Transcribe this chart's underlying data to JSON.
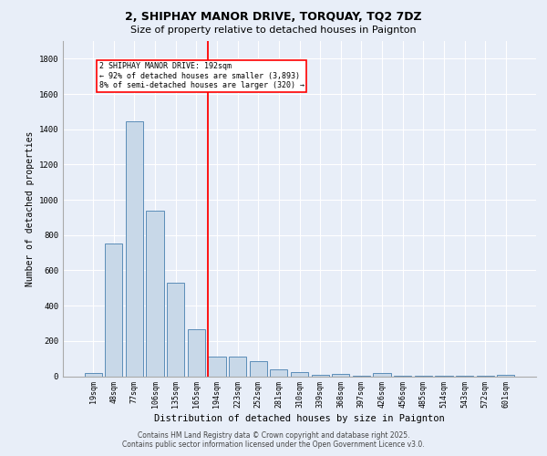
{
  "title1": "2, SHIPHAY MANOR DRIVE, TORQUAY, TQ2 7DZ",
  "title2": "Size of property relative to detached houses in Paignton",
  "xlabel": "Distribution of detached houses by size in Paignton",
  "ylabel": "Number of detached properties",
  "categories": [
    "19sqm",
    "48sqm",
    "77sqm",
    "106sqm",
    "135sqm",
    "165sqm",
    "194sqm",
    "223sqm",
    "252sqm",
    "281sqm",
    "310sqm",
    "339sqm",
    "368sqm",
    "397sqm",
    "426sqm",
    "456sqm",
    "485sqm",
    "514sqm",
    "543sqm",
    "572sqm",
    "601sqm"
  ],
  "values": [
    20,
    750,
    1443,
    940,
    530,
    265,
    110,
    110,
    85,
    40,
    25,
    10,
    15,
    5,
    20,
    5,
    5,
    5,
    5,
    5,
    10
  ],
  "bar_color": "#c8d8e8",
  "bar_edge_color": "#5b8db8",
  "red_line_x": 5.57,
  "annotation_line1": "2 SHIPHAY MANOR DRIVE: 192sqm",
  "annotation_line2": "← 92% of detached houses are smaller (3,893)",
  "annotation_line3": "8% of semi-detached houses are larger (320) →",
  "ylim": [
    0,
    1900
  ],
  "yticks": [
    0,
    200,
    400,
    600,
    800,
    1000,
    1200,
    1400,
    1600,
    1800
  ],
  "bg_color": "#e8eef8",
  "plot_bg_color": "#e8eef8",
  "grid_color": "#ffffff",
  "footer1": "Contains HM Land Registry data © Crown copyright and database right 2025.",
  "footer2": "Contains public sector information licensed under the Open Government Licence v3.0."
}
